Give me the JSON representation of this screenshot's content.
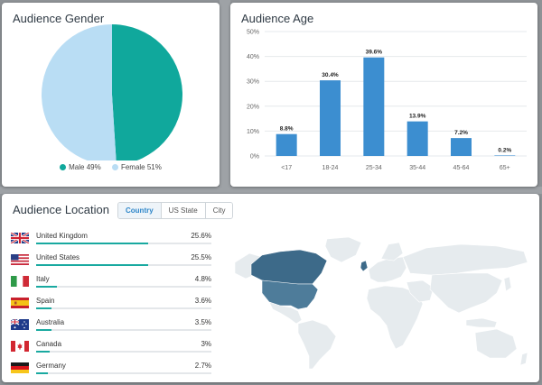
{
  "gender": {
    "title": "Audience Gender",
    "male": {
      "label": "Male",
      "pct_text": "49%",
      "value": 49,
      "color": "#10a89c"
    },
    "female": {
      "label": "Female",
      "pct_text": "51%",
      "value": 51,
      "color": "#b9ddf4"
    }
  },
  "age": {
    "title": "Audience Age",
    "color": "#3c8ed0"
  },
  "chart_data": [
    {
      "type": "pie",
      "title": "Audience Gender",
      "labels": [
        "Male",
        "Female"
      ],
      "values": [
        49,
        51
      ],
      "colors": [
        "#10a89c",
        "#b9ddf4"
      ],
      "legend": "bottom"
    },
    {
      "type": "bar",
      "title": "Audience Age",
      "categories": [
        "<17",
        "18-24",
        "25-34",
        "35-44",
        "45-64",
        "65+"
      ],
      "values": [
        8.8,
        30.4,
        39.6,
        13.9,
        7.2,
        0.2
      ],
      "labels": [
        "8.8%",
        "30.4%",
        "39.6%",
        "13.9%",
        "7.2%",
        "0.2%"
      ],
      "yticks": [
        "0%",
        "10%",
        "20%",
        "30%",
        "40%",
        "50%"
      ],
      "ylim": [
        0,
        50
      ],
      "grid": true,
      "xlabel": "",
      "ylabel": ""
    }
  ],
  "location": {
    "title": "Audience Location",
    "tabs": [
      {
        "label": "Country",
        "active": true
      },
      {
        "label": "US State",
        "active": false
      },
      {
        "label": "City",
        "active": false
      }
    ],
    "rows": [
      {
        "country": "United Kingdom",
        "pct_text": "25.6%",
        "value": 25.6,
        "flag": "uk-flag-icon"
      },
      {
        "country": "United States",
        "pct_text": "25.5%",
        "value": 25.5,
        "flag": "us-flag-icon"
      },
      {
        "country": "Italy",
        "pct_text": "4.8%",
        "value": 4.8,
        "flag": "italy-flag-icon"
      },
      {
        "country": "Spain",
        "pct_text": "3.6%",
        "value": 3.6,
        "flag": "spain-flag-icon"
      },
      {
        "country": "Australia",
        "pct_text": "3.5%",
        "value": 3.5,
        "flag": "australia-flag-icon"
      },
      {
        "country": "Canada",
        "pct_text": "3%",
        "value": 3,
        "flag": "canada-flag-icon"
      },
      {
        "country": "Germany",
        "pct_text": "2.7%",
        "value": 2.7,
        "flag": "germany-flag-icon"
      }
    ],
    "bar_scale_max": 40,
    "bar_color": "#19a9a0",
    "map_colors": {
      "land": "#e6ebee",
      "highlight_dark": "#3d6a89",
      "highlight_mid": "#4e7c9a"
    }
  }
}
